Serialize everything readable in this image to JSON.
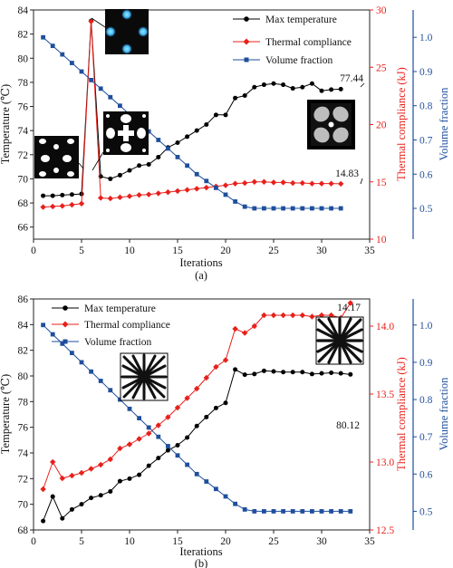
{
  "chart_data": [
    {
      "type": "line",
      "panel_label": "(a)",
      "xlabel": "Iterations",
      "ylabel_left": "Temperature (℃)",
      "ylabel_right1": "Thermal compliance (kJ)",
      "ylabel_right2": "Volume fraction",
      "xlim": [
        0,
        35
      ],
      "xticks": [
        0,
        5,
        10,
        15,
        20,
        25,
        30,
        35
      ],
      "y_left_lim": [
        65,
        84
      ],
      "y_left_ticks": [
        66,
        68,
        70,
        72,
        74,
        76,
        78,
        80,
        82,
        84
      ],
      "y_right1_lim": [
        10,
        30
      ],
      "y_right1_ticks": [
        10,
        15,
        20,
        25,
        30
      ],
      "y_right2_lim": [
        0.41,
        1.08
      ],
      "y_right2_ticks": [
        0.5,
        0.6,
        0.7,
        0.8,
        0.9,
        1.0
      ],
      "legend_position": "top-right",
      "colors": {
        "max_temperature": "#000000",
        "thermal_compliance": "#e8201b",
        "volume_fraction": "#1f4f9c"
      },
      "series": [
        {
          "name": "Max temperature",
          "axis": "left",
          "marker": "circle",
          "x": [
            1,
            2,
            3,
            4,
            5,
            6,
            7,
            8,
            9,
            10,
            11,
            12,
            13,
            14,
            15,
            16,
            17,
            18,
            19,
            20,
            21,
            22,
            23,
            24,
            25,
            26,
            27,
            28,
            29,
            30,
            31,
            32
          ],
          "values": [
            68.6,
            68.6,
            68.65,
            68.7,
            68.75,
            83.1,
            70.2,
            70.0,
            70.3,
            70.7,
            71.1,
            71.2,
            71.8,
            72.6,
            73.0,
            73.5,
            74.0,
            74.5,
            75.3,
            75.3,
            76.7,
            76.9,
            77.6,
            77.8,
            77.9,
            77.8,
            77.5,
            77.6,
            77.9,
            77.3,
            77.4,
            77.44
          ]
        },
        {
          "name": "Thermal compliance",
          "axis": "right1",
          "marker": "diamond",
          "x": [
            1,
            2,
            3,
            4,
            5,
            6,
            7,
            8,
            9,
            10,
            11,
            12,
            13,
            14,
            15,
            16,
            17,
            18,
            19,
            20,
            21,
            22,
            23,
            24,
            25,
            26,
            27,
            28,
            29,
            30,
            31,
            32
          ],
          "values": [
            12.8,
            12.85,
            12.9,
            13.0,
            13.1,
            29.0,
            13.6,
            13.55,
            13.65,
            13.75,
            13.85,
            13.9,
            14.0,
            14.1,
            14.2,
            14.3,
            14.4,
            14.5,
            14.6,
            14.7,
            14.85,
            14.9,
            15.0,
            15.0,
            14.95,
            14.95,
            14.9,
            14.9,
            14.85,
            14.85,
            14.85,
            14.83
          ]
        },
        {
          "name": "Volume fraction",
          "axis": "right2",
          "marker": "square",
          "x": [
            1,
            2,
            3,
            4,
            5,
            6,
            7,
            8,
            9,
            10,
            11,
            12,
            13,
            14,
            15,
            16,
            17,
            18,
            19,
            20,
            21,
            22,
            23,
            24,
            25,
            26,
            27,
            28,
            29,
            30,
            31,
            32
          ],
          "values": [
            1.0,
            0.975,
            0.95,
            0.925,
            0.9,
            0.875,
            0.85,
            0.825,
            0.8,
            0.775,
            0.75,
            0.725,
            0.7,
            0.675,
            0.65,
            0.625,
            0.6,
            0.58,
            0.56,
            0.54,
            0.52,
            0.505,
            0.5,
            0.5,
            0.5,
            0.5,
            0.5,
            0.5,
            0.5,
            0.5,
            0.5,
            0.5
          ]
        }
      ],
      "annotations": [
        "77.44",
        "14.83"
      ]
    },
    {
      "type": "line",
      "panel_label": "(b)",
      "xlabel": "Iterations",
      "ylabel_left": "Temperature (℃)",
      "ylabel_right1": "Thermal compliance (kJ)",
      "ylabel_right2": "Volume fraction",
      "xlim": [
        0,
        35
      ],
      "xticks": [
        0,
        5,
        10,
        15,
        20,
        25,
        30,
        35
      ],
      "y_left_lim": [
        68,
        86
      ],
      "y_left_ticks": [
        68,
        70,
        72,
        74,
        76,
        78,
        80,
        82,
        84,
        86
      ],
      "y_right1_lim": [
        12.5,
        14.2
      ],
      "y_right1_ticks": [
        12.5,
        13.0,
        13.5,
        14.0
      ],
      "y_right2_lim": [
        0.45,
        1.07
      ],
      "y_right2_ticks": [
        0.5,
        0.6,
        0.7,
        0.8,
        0.9,
        1.0
      ],
      "legend_position": "top-left",
      "colors": {
        "max_temperature": "#000000",
        "thermal_compliance": "#e8201b",
        "volume_fraction": "#1f4f9c"
      },
      "series": [
        {
          "name": "Max temperature",
          "axis": "left",
          "marker": "circle",
          "x": [
            1,
            2,
            3,
            4,
            5,
            6,
            7,
            8,
            9,
            10,
            11,
            12,
            13,
            14,
            15,
            16,
            17,
            18,
            19,
            20,
            21,
            22,
            23,
            24,
            25,
            26,
            27,
            28,
            29,
            30,
            31,
            32,
            33
          ],
          "values": [
            68.7,
            70.6,
            68.9,
            69.6,
            70.0,
            70.5,
            70.7,
            71.0,
            71.8,
            72.0,
            72.3,
            73.0,
            73.6,
            74.2,
            74.6,
            75.2,
            76.1,
            76.8,
            77.5,
            77.9,
            80.5,
            80.1,
            80.15,
            80.4,
            80.35,
            80.3,
            80.3,
            80.3,
            80.15,
            80.2,
            80.25,
            80.2,
            80.12
          ]
        },
        {
          "name": "Thermal compliance",
          "axis": "right1",
          "marker": "diamond",
          "x": [
            1,
            2,
            3,
            4,
            5,
            6,
            7,
            8,
            9,
            10,
            11,
            12,
            13,
            14,
            15,
            16,
            17,
            18,
            19,
            20,
            21,
            22,
            23,
            24,
            25,
            26,
            27,
            28,
            29,
            30,
            31,
            32,
            33
          ],
          "values": [
            12.8,
            13.0,
            12.88,
            12.9,
            12.92,
            12.95,
            12.98,
            13.02,
            13.1,
            13.13,
            13.17,
            13.21,
            13.27,
            13.33,
            13.4,
            13.47,
            13.54,
            13.62,
            13.7,
            13.75,
            13.98,
            13.95,
            14.0,
            14.08,
            14.08,
            14.08,
            14.08,
            14.08,
            14.07,
            14.08,
            14.08,
            14.06,
            14.17
          ]
        },
        {
          "name": "Volume fraction",
          "axis": "right2",
          "marker": "square",
          "x": [
            1,
            2,
            3,
            4,
            5,
            6,
            7,
            8,
            9,
            10,
            11,
            12,
            13,
            14,
            15,
            16,
            17,
            18,
            19,
            20,
            21,
            22,
            23,
            24,
            25,
            26,
            27,
            28,
            29,
            30,
            31,
            32,
            33
          ],
          "values": [
            1.0,
            0.975,
            0.95,
            0.925,
            0.9,
            0.875,
            0.85,
            0.825,
            0.8,
            0.775,
            0.75,
            0.725,
            0.7,
            0.675,
            0.65,
            0.625,
            0.6,
            0.58,
            0.56,
            0.54,
            0.52,
            0.505,
            0.5,
            0.5,
            0.5,
            0.5,
            0.5,
            0.5,
            0.5,
            0.5,
            0.5,
            0.5,
            0.5
          ]
        }
      ],
      "annotations": [
        "14.17",
        "80.12"
      ]
    }
  ]
}
